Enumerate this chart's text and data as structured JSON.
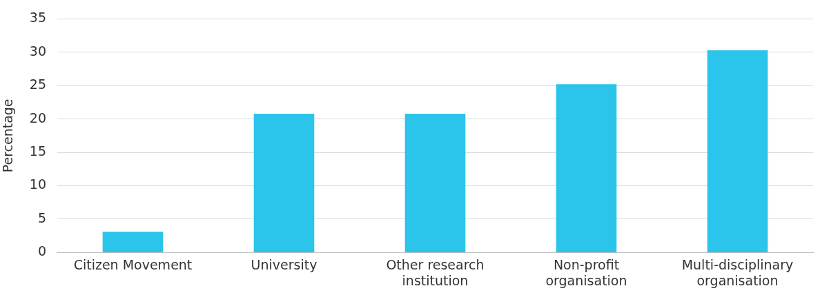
{
  "chart_data": {
    "type": "bar",
    "ylabel": "Percentage",
    "categories": [
      "Citizen Movement",
      "University",
      "Other research institution",
      "Non-profit organisation",
      "Multi-disciplinary organisation"
    ],
    "values": [
      3.1,
      20.8,
      20.8,
      25.2,
      30.3
    ],
    "color": "#2bc4ea",
    "ylim": [
      0,
      35
    ],
    "yticks": [
      0,
      5,
      10,
      15,
      20,
      25,
      30,
      35
    ],
    "grid": "y",
    "legend": false
  }
}
